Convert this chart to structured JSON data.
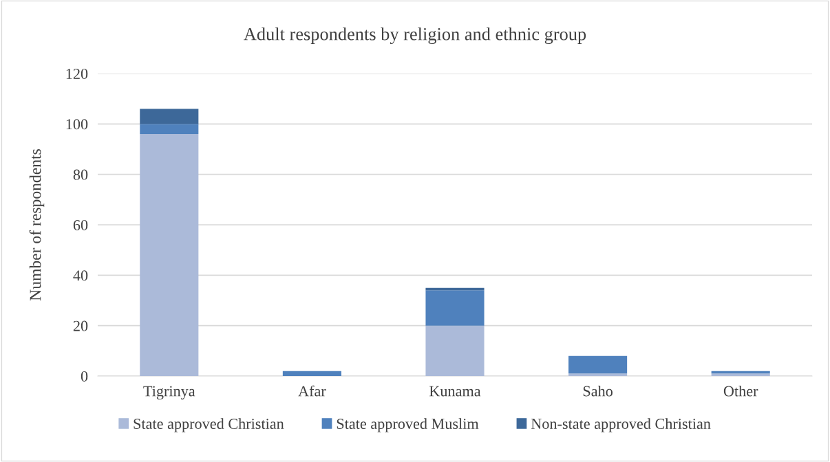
{
  "chart_data": {
    "type": "bar",
    "title": "Adult respondents by religion and ethnic group",
    "ylabel": "Number of respondents",
    "categories": [
      "Tigrinya",
      "Afar",
      "Kunama",
      "Saho",
      "Other"
    ],
    "series": [
      {
        "name": "State approved Christian",
        "color": "#abbad9",
        "values": [
          96,
          0,
          20,
          1,
          1
        ]
      },
      {
        "name": "State approved Muslim",
        "color": "#4f81bd",
        "values": [
          4,
          2,
          14,
          7,
          1
        ]
      },
      {
        "name": "Non-state approved Christian",
        "color": "#3d6899",
        "values": [
          6,
          0,
          1,
          0,
          0
        ]
      }
    ],
    "stacked": true,
    "ylim": [
      0,
      120
    ],
    "yticks": [
      0,
      20,
      40,
      60,
      80,
      100,
      120
    ],
    "grid": "y",
    "legend": "bottom"
  }
}
